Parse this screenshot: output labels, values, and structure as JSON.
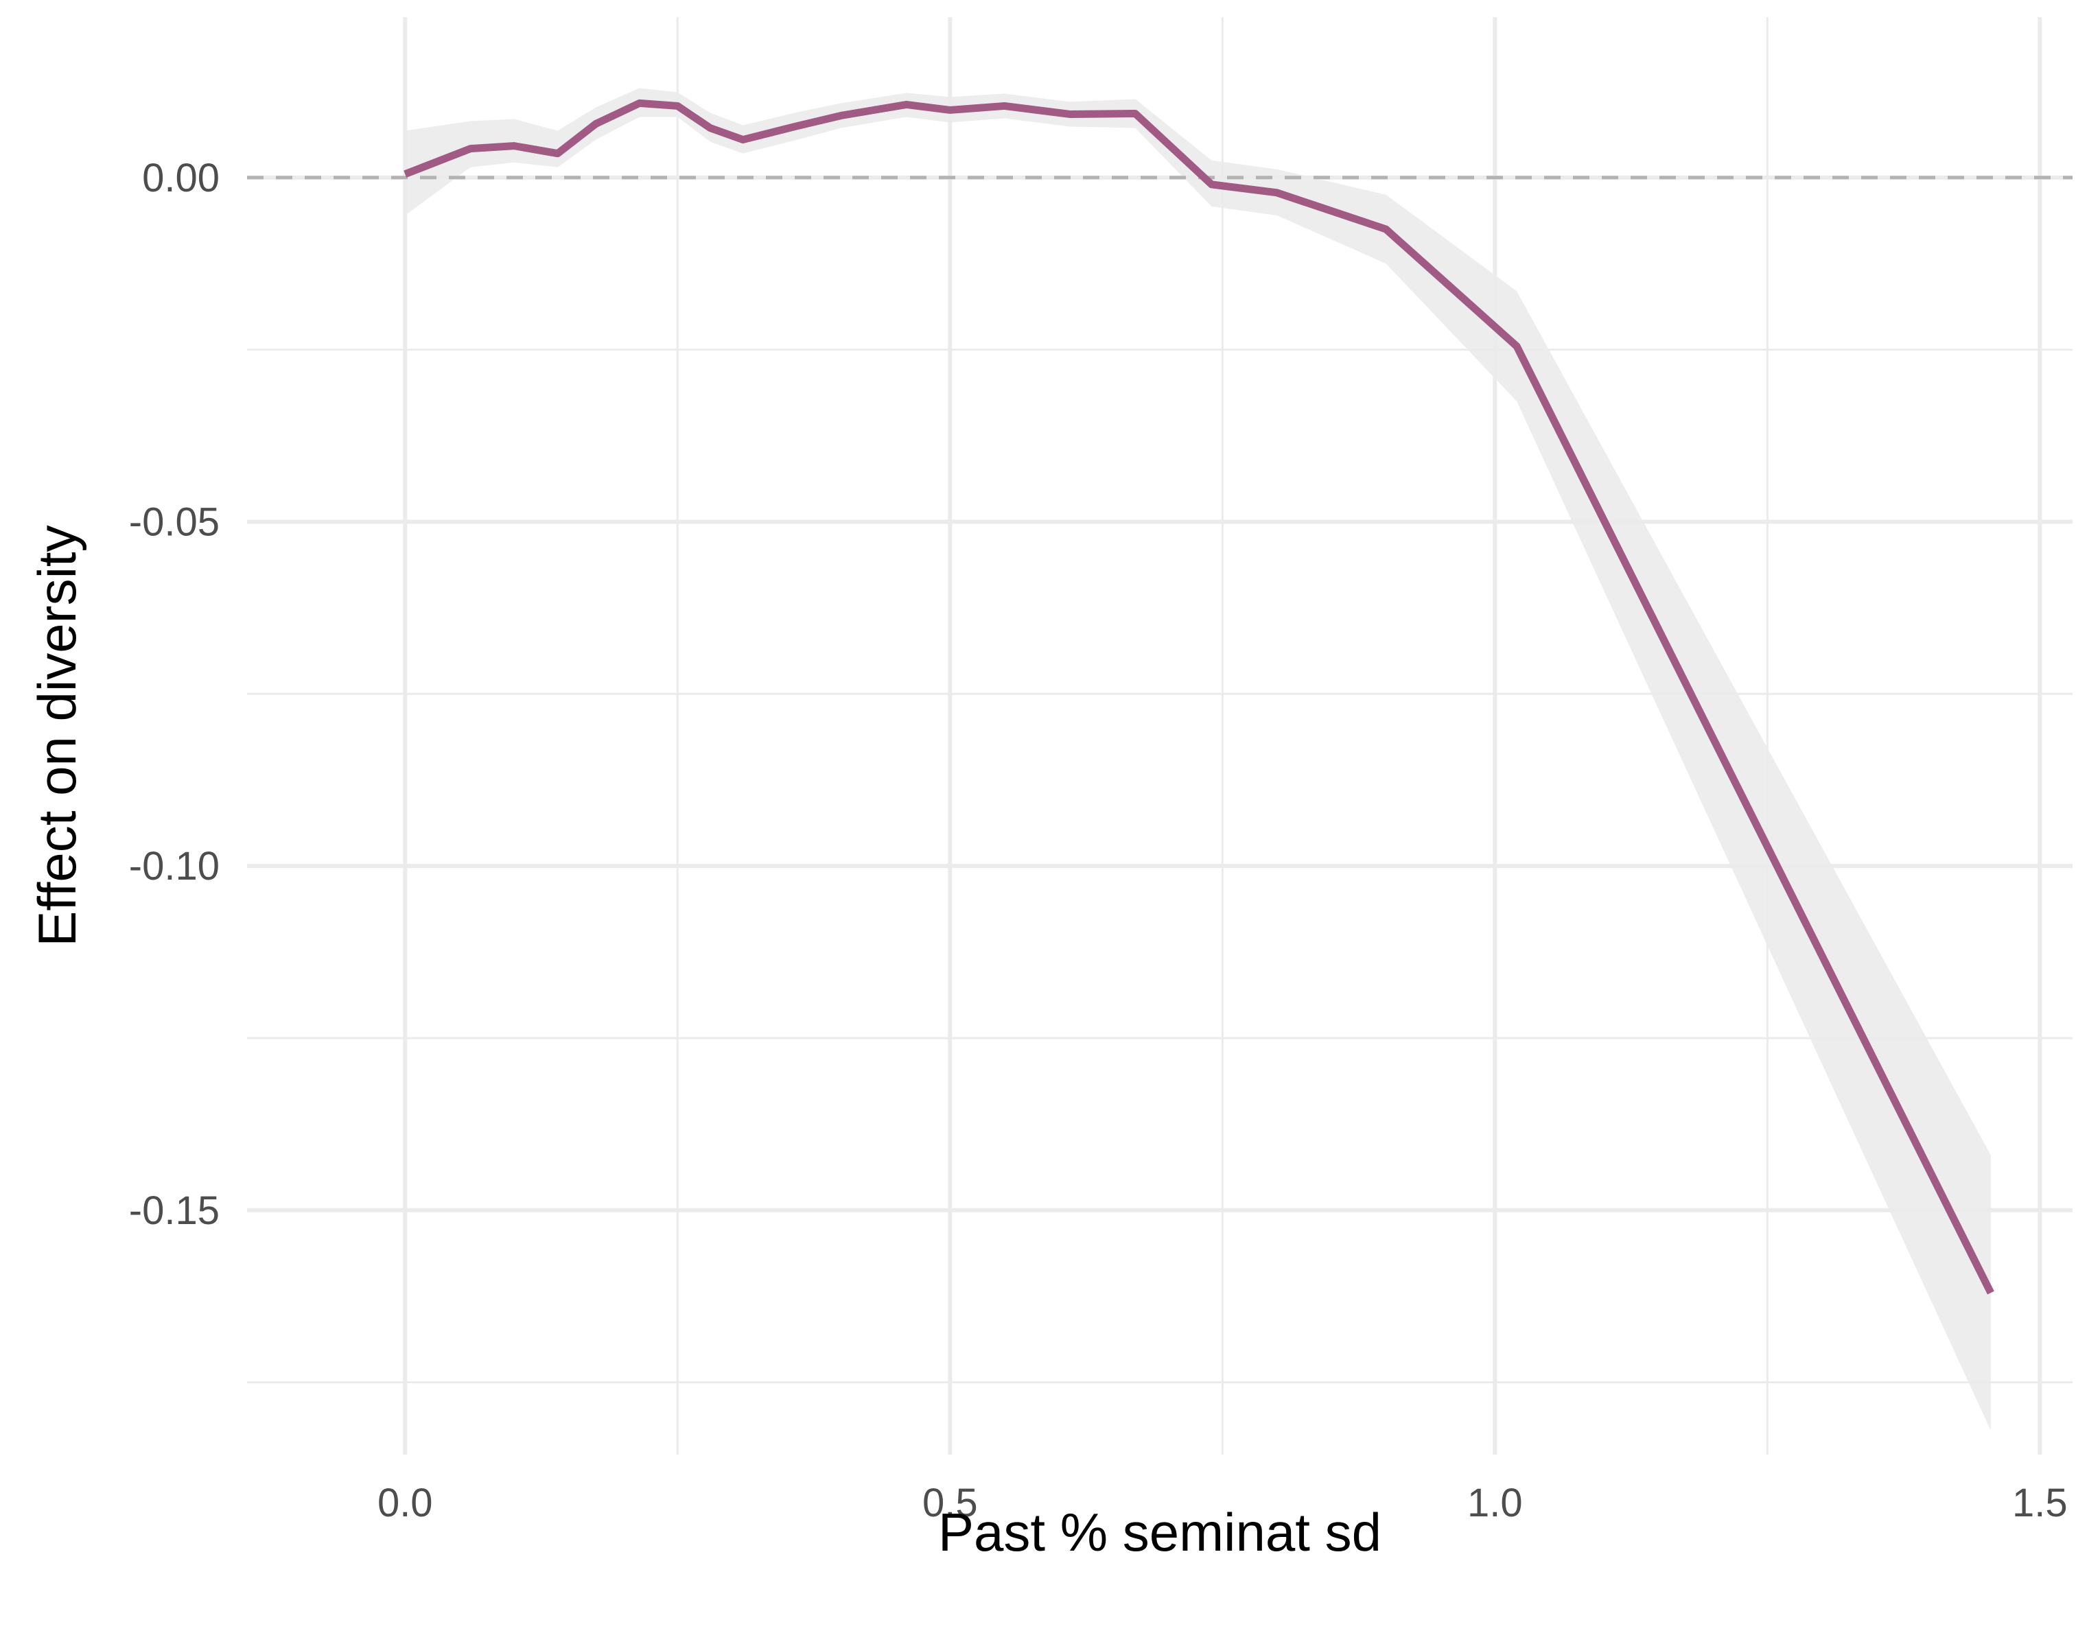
{
  "chart_data": {
    "type": "line",
    "title": "",
    "xlabel": "Past % seminat sd",
    "ylabel": "Effect on diversity",
    "xlim": [
      -0.145,
      1.53
    ],
    "ylim": [
      -0.1855,
      0.0233
    ],
    "x_ticks": [
      0.0,
      0.5,
      1.0,
      1.5
    ],
    "x_tick_labels": [
      "0.0",
      "0.5",
      "1.0",
      "1.5"
    ],
    "x_minor_ticks": [
      0.25,
      0.75,
      1.25
    ],
    "y_ticks": [
      0.0,
      -0.05,
      -0.1,
      -0.15
    ],
    "y_tick_labels": [
      "0.00",
      "-0.05",
      "-0.10",
      "-0.15"
    ],
    "y_minor_ticks": [
      -0.025,
      -0.075,
      -0.125,
      -0.175
    ],
    "grid": true,
    "reference_line": {
      "y": 0.0,
      "style": "dashed",
      "color": "#b3b3b3"
    },
    "series": [
      {
        "line_color": "#a05a84",
        "band_color": "#ebebeb",
        "x": [
          0.0,
          0.06,
          0.1,
          0.14,
          0.175,
          0.215,
          0.25,
          0.28,
          0.31,
          0.36,
          0.4,
          0.46,
          0.5,
          0.55,
          0.61,
          0.67,
          0.74,
          0.8,
          0.9,
          1.02,
          1.455
        ],
        "y": [
          0.0005,
          0.0042,
          0.0046,
          0.0035,
          0.0078,
          0.0108,
          0.0104,
          0.0072,
          0.0055,
          0.0075,
          0.009,
          0.0106,
          0.0098,
          0.0104,
          0.0092,
          0.0093,
          -0.001,
          -0.0022,
          -0.0075,
          -0.0245,
          -0.162
        ],
        "lower": [
          -0.0055,
          0.0015,
          0.0022,
          0.0015,
          0.0055,
          0.0088,
          0.0088,
          0.0052,
          0.0035,
          0.0055,
          0.0072,
          0.0088,
          0.008,
          0.0086,
          0.0074,
          0.0072,
          -0.0042,
          -0.0055,
          -0.0125,
          -0.0325,
          -0.182
        ],
        "upper": [
          0.0068,
          0.0082,
          0.0085,
          0.0068,
          0.0102,
          0.013,
          0.0124,
          0.0094,
          0.0076,
          0.0095,
          0.0108,
          0.0123,
          0.0117,
          0.0122,
          0.011,
          0.0114,
          0.0025,
          0.0012,
          -0.0025,
          -0.0165,
          -0.142
        ]
      }
    ]
  }
}
